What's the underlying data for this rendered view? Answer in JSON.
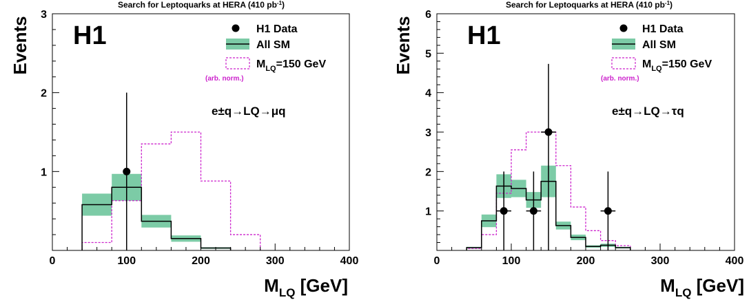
{
  "colors": {
    "band": "#7ccba6",
    "line": "#000000",
    "lq": "#cc22cc"
  },
  "chart_data": [
    {
      "type": "histogram",
      "title": "Search for Leptoquarks at HERA (410 pb",
      "title_sup": "-1",
      "title_end": ")",
      "experiment": "H1",
      "process": "e±q→LQ→μq",
      "xlabel": "M",
      "xlabel_sub": "LQ",
      "xlabel_unit": " [GeV]",
      "ylabel": "Events",
      "xlim": [
        0,
        400
      ],
      "ylim": [
        0,
        3
      ],
      "xticks": [
        "0",
        "100",
        "200",
        "300",
        "400"
      ],
      "yticks": [
        "1",
        "2",
        "3"
      ],
      "legend": {
        "data": "H1 Data",
        "sm": "All SM",
        "lq": "M",
        "lq_sub": "LQ",
        "lq_end": "=150 GeV",
        "note": "(arb. norm.)"
      },
      "sm": [
        {
          "x0": 40,
          "x1": 80,
          "y": 0.58,
          "err": 0.14
        },
        {
          "x0": 80,
          "x1": 120,
          "y": 0.8,
          "err": 0.17
        },
        {
          "x0": 120,
          "x1": 160,
          "y": 0.37,
          "err": 0.08
        },
        {
          "x0": 160,
          "x1": 200,
          "y": 0.15,
          "err": 0.04
        },
        {
          "x0": 200,
          "x1": 240,
          "y": 0.03,
          "err": 0.01
        }
      ],
      "lq": [
        {
          "x0": 40,
          "x1": 80,
          "y": 0.1
        },
        {
          "x0": 80,
          "x1": 120,
          "y": 0.63
        },
        {
          "x0": 120,
          "x1": 160,
          "y": 1.35
        },
        {
          "x0": 160,
          "x1": 200,
          "y": 1.5
        },
        {
          "x0": 200,
          "x1": 240,
          "y": 0.88
        },
        {
          "x0": 240,
          "x1": 280,
          "y": 0.2
        }
      ],
      "data_points": [
        {
          "x": 100,
          "y": 1,
          "yerr_up": 1.0,
          "yerr_low": 1.0,
          "xerr": 0
        }
      ]
    },
    {
      "type": "histogram",
      "title": "Search for Leptoquarks at HERA (410 pb",
      "title_sup": "-1",
      "title_end": ")",
      "experiment": "H1",
      "process": "e±q→LQ→τq",
      "xlabel": "M",
      "xlabel_sub": "LQ",
      "xlabel_unit": " [GeV]",
      "ylabel": "Events",
      "xlim": [
        0,
        400
      ],
      "ylim": [
        0,
        6
      ],
      "xticks": [
        "0",
        "100",
        "200",
        "300",
        "400"
      ],
      "yticks": [
        "1",
        "2",
        "3",
        "4",
        "5",
        "6"
      ],
      "legend": {
        "data": "H1 Data",
        "sm": "All SM",
        "lq": "M",
        "lq_sub": "LQ",
        "lq_end": "=150 GeV",
        "note": "(arb. norm.)"
      },
      "sm": [
        {
          "x0": 40,
          "x1": 60,
          "y": 0.07,
          "err": 0.02
        },
        {
          "x0": 60,
          "x1": 80,
          "y": 0.75,
          "err": 0.16
        },
        {
          "x0": 80,
          "x1": 100,
          "y": 1.63,
          "err": 0.3
        },
        {
          "x0": 100,
          "x1": 120,
          "y": 1.57,
          "err": 0.22
        },
        {
          "x0": 120,
          "x1": 140,
          "y": 1.28,
          "err": 0.2
        },
        {
          "x0": 140,
          "x1": 160,
          "y": 1.75,
          "err": 0.4
        },
        {
          "x0": 160,
          "x1": 180,
          "y": 0.63,
          "err": 0.1
        },
        {
          "x0": 180,
          "x1": 200,
          "y": 0.33,
          "err": 0.07
        },
        {
          "x0": 200,
          "x1": 220,
          "y": 0.1,
          "err": 0.03
        },
        {
          "x0": 220,
          "x1": 240,
          "y": 0.13,
          "err": 0.04
        },
        {
          "x0": 240,
          "x1": 260,
          "y": 0.07,
          "err": 0.02
        }
      ],
      "lq": [
        {
          "x0": 40,
          "x1": 60,
          "y": 0.05
        },
        {
          "x0": 60,
          "x1": 80,
          "y": 0.4
        },
        {
          "x0": 80,
          "x1": 100,
          "y": 1.45
        },
        {
          "x0": 100,
          "x1": 120,
          "y": 2.55
        },
        {
          "x0": 120,
          "x1": 140,
          "y": 3.0
        },
        {
          "x0": 140,
          "x1": 160,
          "y": 3.0
        },
        {
          "x0": 160,
          "x1": 180,
          "y": 2.15
        },
        {
          "x0": 180,
          "x1": 200,
          "y": 1.1
        },
        {
          "x0": 200,
          "x1": 220,
          "y": 0.5
        },
        {
          "x0": 220,
          "x1": 240,
          "y": 0.25
        },
        {
          "x0": 240,
          "x1": 260,
          "y": 0.12
        }
      ],
      "data_points": [
        {
          "x": 90,
          "y": 1,
          "yerr_up": 1.0,
          "yerr_low": 1.0,
          "xerr": 10
        },
        {
          "x": 130,
          "y": 1,
          "yerr_up": 1.0,
          "yerr_low": 1.0,
          "xerr": 10
        },
        {
          "x": 150,
          "y": 3,
          "yerr_up": 1.73,
          "yerr_low": 3.0,
          "xerr": 10
        },
        {
          "x": 230,
          "y": 1,
          "yerr_up": 1.0,
          "yerr_low": 1.0,
          "xerr": 10
        }
      ]
    }
  ]
}
